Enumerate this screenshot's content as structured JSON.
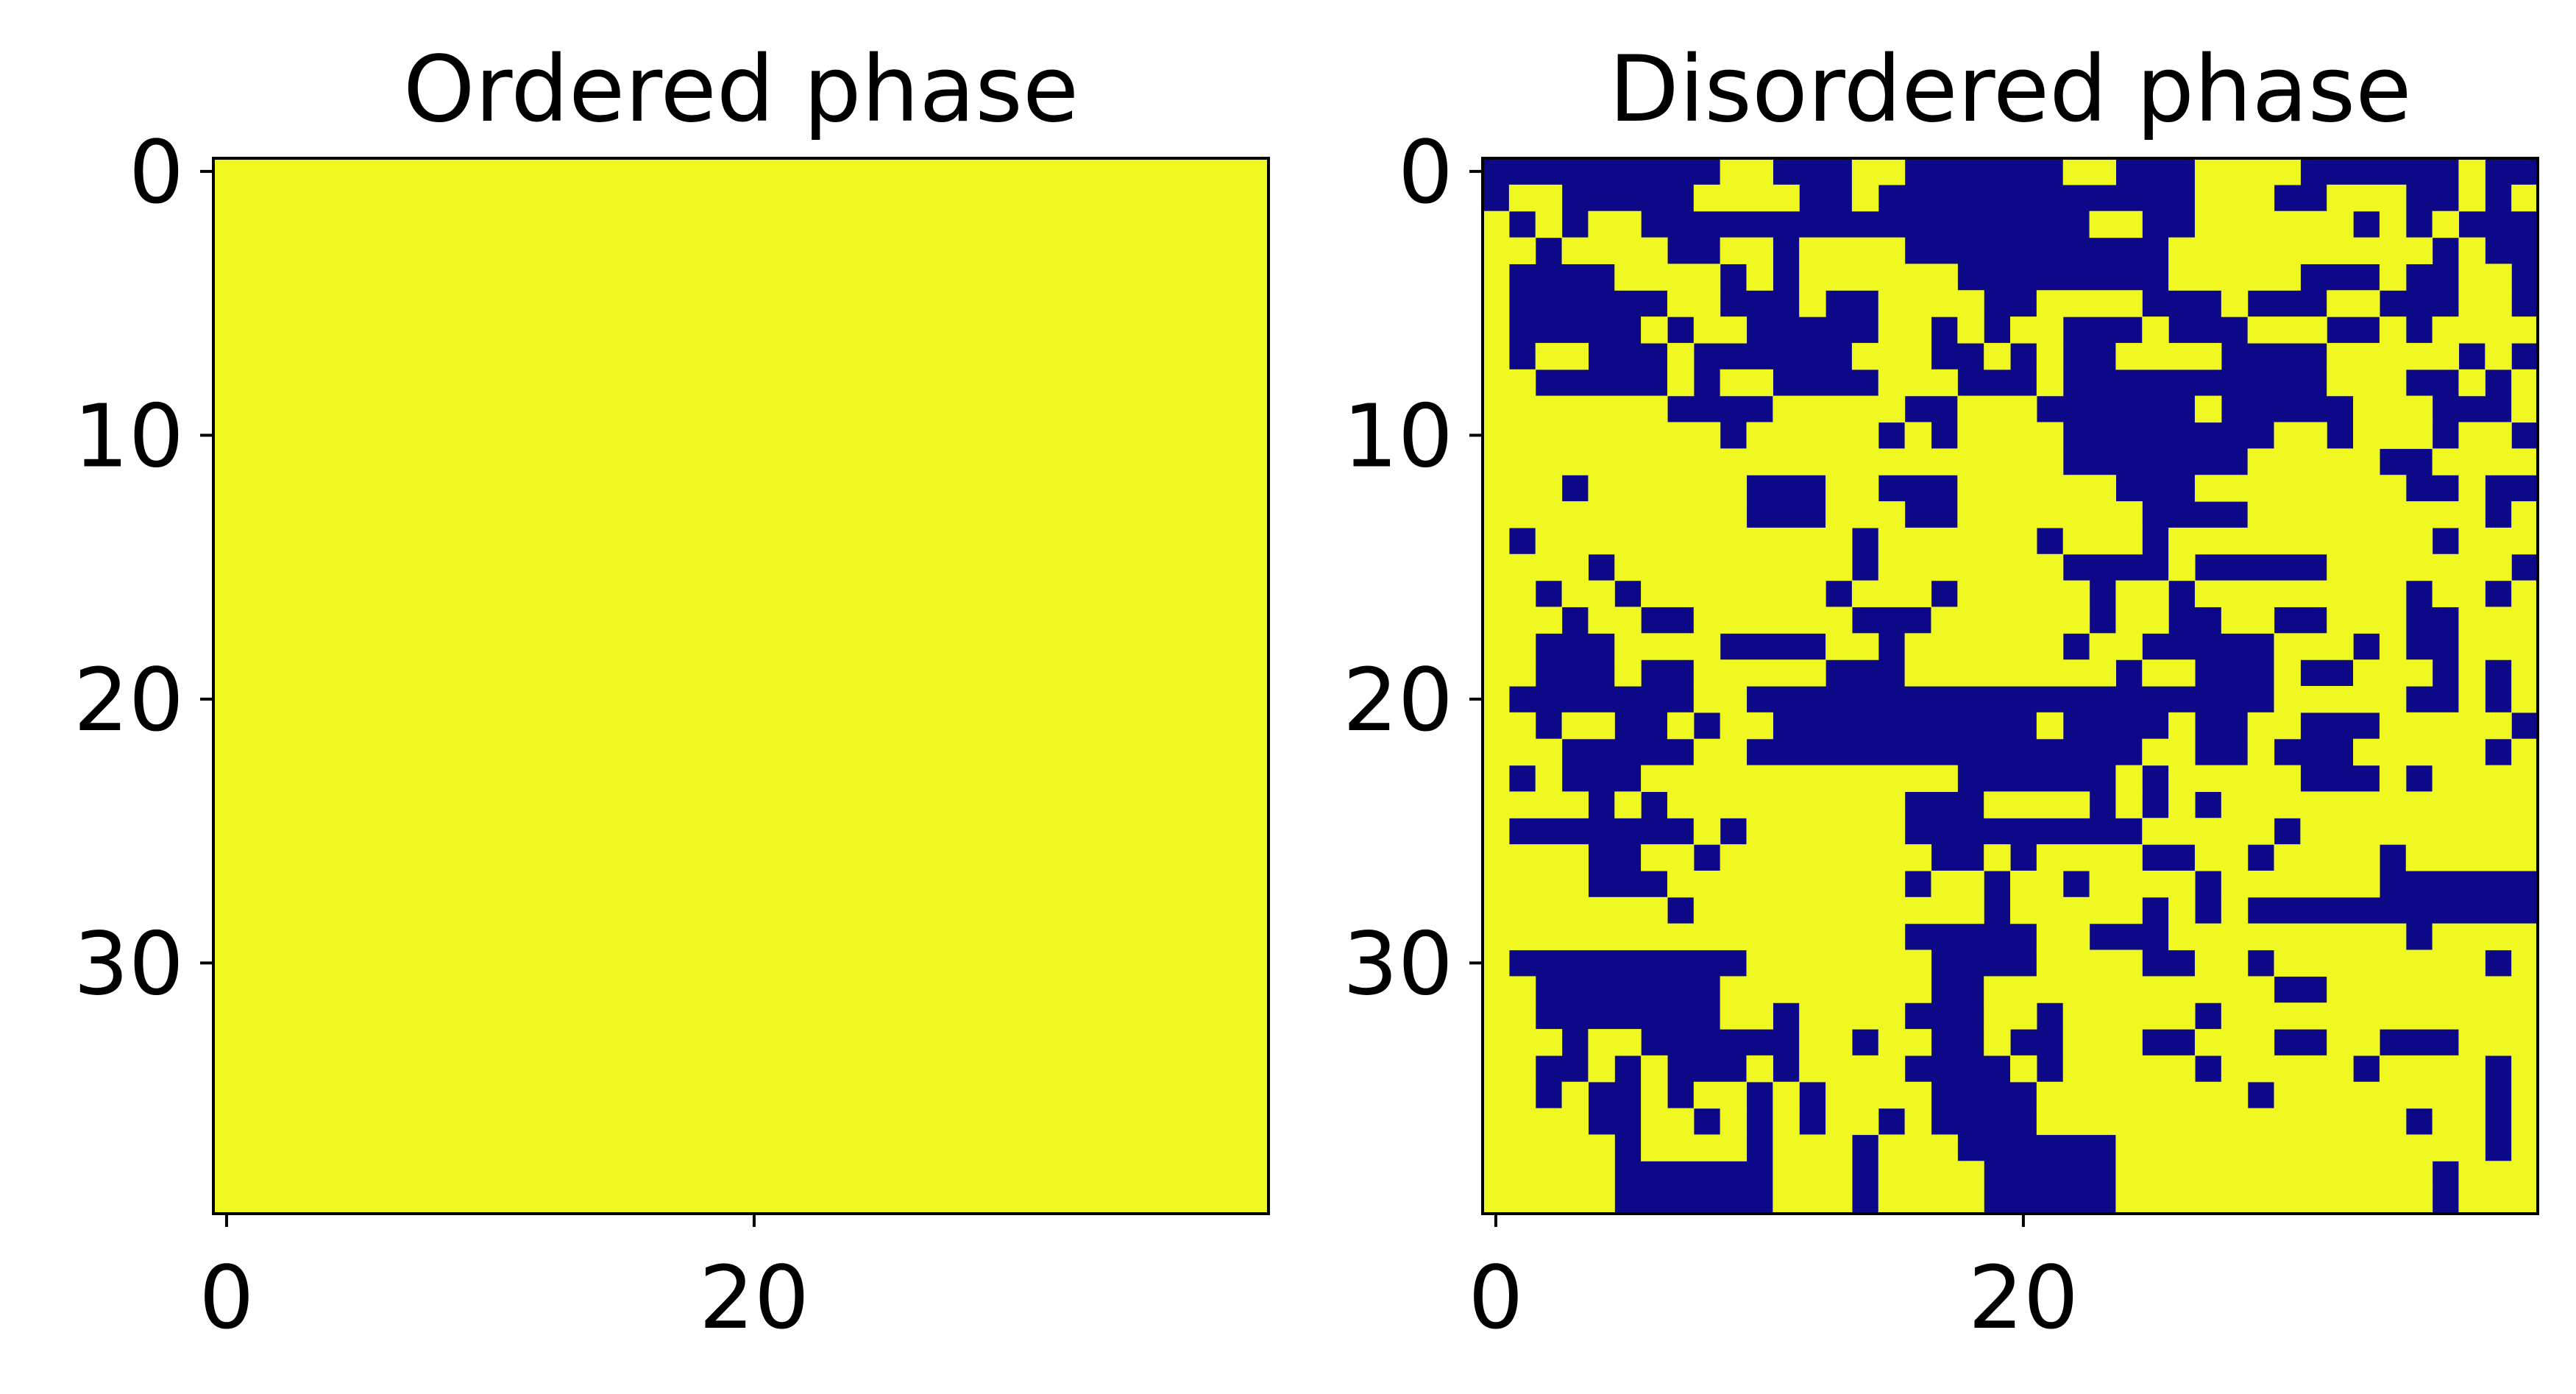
{
  "colors": {
    "spin_up": "#EFF821",
    "spin_down": "#0D0887",
    "axis": "#000000",
    "background": "#FFFFFF"
  },
  "chart_data": [
    {
      "type": "heatmap",
      "title": "Ordered phase",
      "grid_size": 40,
      "xticks": [
        0,
        20
      ],
      "yticks": [
        0,
        10,
        20,
        30
      ],
      "xlim": [
        -0.5,
        39.5
      ],
      "ylim": [
        39.5,
        -0.5
      ],
      "values": "all cells = 1 (uniform, spin up)",
      "colormap": "plasma",
      "rows": [
        "1111111111111111111111111111111111111111",
        "1111111111111111111111111111111111111111",
        "1111111111111111111111111111111111111111",
        "1111111111111111111111111111111111111111",
        "1111111111111111111111111111111111111111",
        "1111111111111111111111111111111111111111",
        "1111111111111111111111111111111111111111",
        "1111111111111111111111111111111111111111",
        "1111111111111111111111111111111111111111",
        "1111111111111111111111111111111111111111",
        "1111111111111111111111111111111111111111",
        "1111111111111111111111111111111111111111",
        "1111111111111111111111111111111111111111",
        "1111111111111111111111111111111111111111",
        "1111111111111111111111111111111111111111",
        "1111111111111111111111111111111111111111",
        "1111111111111111111111111111111111111111",
        "1111111111111111111111111111111111111111",
        "1111111111111111111111111111111111111111",
        "1111111111111111111111111111111111111111",
        "1111111111111111111111111111111111111111",
        "1111111111111111111111111111111111111111",
        "1111111111111111111111111111111111111111",
        "1111111111111111111111111111111111111111",
        "1111111111111111111111111111111111111111",
        "1111111111111111111111111111111111111111",
        "1111111111111111111111111111111111111111",
        "1111111111111111111111111111111111111111",
        "1111111111111111111111111111111111111111",
        "1111111111111111111111111111111111111111",
        "1111111111111111111111111111111111111111",
        "1111111111111111111111111111111111111111",
        "1111111111111111111111111111111111111111",
        "1111111111111111111111111111111111111111",
        "1111111111111111111111111111111111111111",
        "1111111111111111111111111111111111111111",
        "1111111111111111111111111111111111111111",
        "1111111111111111111111111111111111111111",
        "1111111111111111111111111111111111111111",
        "1111111111111111111111111111111111111111"
      ]
    },
    {
      "type": "heatmap",
      "title": "Disordered phase",
      "grid_size": 40,
      "xticks": [
        0,
        20
      ],
      "yticks": [
        0,
        10,
        20,
        30
      ],
      "xlim": [
        -0.5,
        39.5
      ],
      "ylim": [
        39.5,
        -0.5
      ],
      "values": "binary spin lattice (1 = yellow, 0 = dark blue)",
      "colormap": "plasma",
      "rows": [
        "0000000001100011000000110001111000000100",
        "0110000011110010000000000001110011100101",
        "1010110000000000000000011001111110101000",
        "1101111001101111000000000011111111110100",
        "1000011110101111110000000011111000100110",
        "1000000110001001111001111000100011000110",
        "1000001011000001101011000100011100101111",
        "1011000100000011100101001111000011111010",
        "1100000101100001110001000000000011100101",
        "1111111000011111001110000001000001110001",
        "1111111110111110101111000000001101110110",
        "1111111111111111111111000000011111001111",
        "1110111111000110001111110001111111100100",
        "1111111111000111001111111000011111111101",
        "1011111111111101111110111011111111110111",
        "1111011111111101111111000010000011111110",
        "1101101111111011101111101101111111101101",
        "1110110011111100011111101100110011100111",
        "1100011110000110111111011000001110100111",
        "1100010011111000111111110110001001110101",
        "1000000011000000000000000000001111100101",
        "1101100101100000000001000010011000111110",
        "1110000011000000000000000110010001111101",
        "1010001111111111110000001011111000101111",
        "1111010111111111000111101010111111111111",
        "1000000010111111000000000111110111111111",
        "1111001101111111100101111001101111011111",
        "1111000111111111011011011110111111000000",
        "1111111011111111111011111010100000000000",
        "1111111111111111000001100011111111101111",
        "1000000000111111100001111001101111111101",
        "1100000001111111100111111111110011111111",
        "1100000001101111000110111110111111111111",
        "1110110000001101100100111001110011000111",
        "1100101000101111000010111110111110111101",
        "1101001011010111100001111111101111111101",
        "1111001101010110100001111111111111101101",
        "1111101111011101110000001111111111111101",
        "1111100000011101111000001111111111110111",
        "1111100000011101111000001111111111110111"
      ]
    }
  ]
}
